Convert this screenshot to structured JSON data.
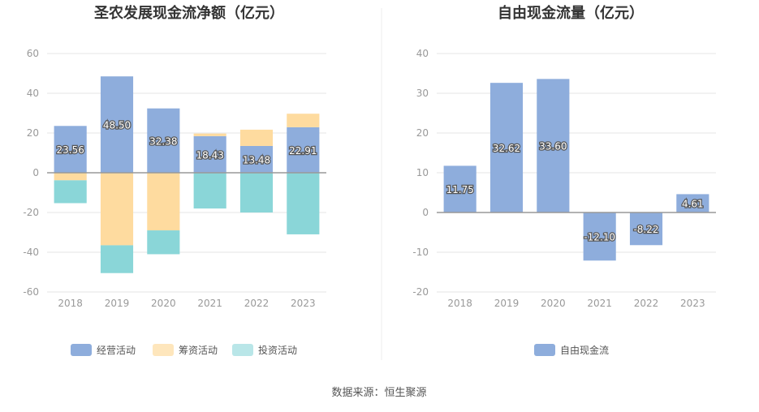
{
  "source": "数据来源：恒生聚源",
  "colors": {
    "operating": "#8eaddc",
    "financing": "#fedb9f",
    "investing": "#8ad6d8",
    "free_cash_flow": "#8eaddc",
    "grid": "#e6e6e6",
    "axis": "#999999"
  },
  "chart_data": [
    {
      "type": "bar",
      "stacked": true,
      "title": "圣农发展现金流净额（亿元）",
      "categories": [
        "2018",
        "2019",
        "2020",
        "2021",
        "2022",
        "2023"
      ],
      "ylim": [
        -60,
        60
      ],
      "yticks": [
        60,
        40,
        20,
        0,
        -20,
        -40,
        -60
      ],
      "grid": true,
      "legend_position": "bottom",
      "series": [
        {
          "name": "经营活动",
          "color_key": "operating",
          "values": [
            23.56,
            48.5,
            32.38,
            18.43,
            13.48,
            22.91
          ],
          "labeled": true
        },
        {
          "name": "筹资活动",
          "color_key": "financing",
          "values": [
            -3.8,
            -36.5,
            -29.0,
            1.3,
            8.2,
            6.8
          ],
          "labeled": false
        },
        {
          "name": "投资活动",
          "color_key": "investing",
          "values": [
            -11.5,
            -14.0,
            -12.0,
            -18.0,
            -20.0,
            -31.0
          ],
          "labeled": false
        }
      ]
    },
    {
      "type": "bar",
      "stacked": false,
      "title": "自由现金流量（亿元）",
      "categories": [
        "2018",
        "2019",
        "2020",
        "2021",
        "2022",
        "2023"
      ],
      "ylim": [
        -20,
        40
      ],
      "yticks": [
        40,
        30,
        20,
        10,
        0,
        -10,
        -20
      ],
      "grid": true,
      "legend_position": "bottom",
      "series": [
        {
          "name": "自由现金流",
          "color_key": "free_cash_flow",
          "values": [
            11.75,
            32.62,
            33.6,
            -12.1,
            -8.22,
            4.61
          ],
          "labeled": true
        }
      ]
    }
  ]
}
